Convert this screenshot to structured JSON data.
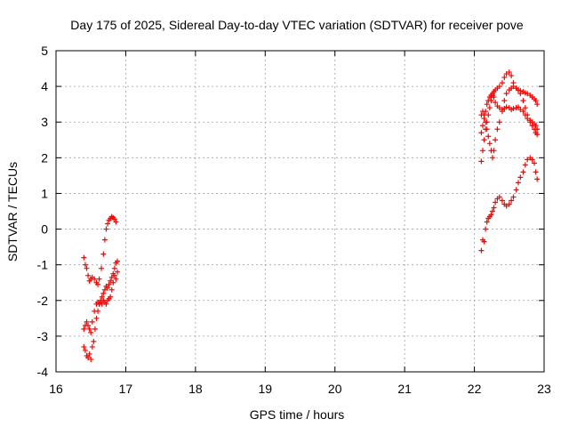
{
  "chart_data": {
    "type": "scatter",
    "title": "Day 175 of 2025, Sidereal Day-to-day VTEC variation (SDTVAR) for receiver pove",
    "xlabel": "GPS time / hours",
    "ylabel": "SDTVAR / TECUs",
    "xlim": [
      16,
      23
    ],
    "ylim": [
      -4,
      5
    ],
    "xticks": [
      16,
      17,
      18,
      19,
      20,
      21,
      22,
      23
    ],
    "yticks": [
      -4,
      -3,
      -2,
      -1,
      0,
      1,
      2,
      3,
      4,
      5
    ],
    "grid": true,
    "legend": "none",
    "marker": "+",
    "color": "#ff0000",
    "series": [
      {
        "x": [
          16.4,
          16.42,
          16.44,
          16.46,
          16.48,
          16.5,
          16.52,
          16.55,
          16.58,
          16.6,
          16.62,
          16.65,
          16.68,
          16.7,
          16.72,
          16.74,
          16.76,
          16.78,
          16.8,
          16.82,
          16.84,
          16.86
        ],
        "y": [
          -0.8,
          -1.0,
          -1.1,
          -1.3,
          -1.45,
          -1.4,
          -1.35,
          -1.4,
          -1.5,
          -1.55,
          -1.4,
          -1.1,
          -0.7,
          -0.3,
          0.0,
          0.15,
          0.25,
          0.3,
          0.35,
          0.32,
          0.28,
          0.2
        ]
      },
      {
        "x": [
          16.4,
          16.42,
          16.44,
          16.46,
          16.48,
          16.5,
          16.52,
          16.55,
          16.58,
          16.6,
          16.62,
          16.64,
          16.66,
          16.68,
          16.7,
          16.72,
          16.74,
          16.76,
          16.78,
          16.8,
          16.82,
          16.84,
          16.86,
          16.88
        ],
        "y": [
          -2.8,
          -2.7,
          -2.6,
          -2.7,
          -2.8,
          -2.9,
          -2.6,
          -2.3,
          -2.1,
          -2.05,
          -2.1,
          -2.0,
          -1.9,
          -1.8,
          -1.7,
          -1.6,
          -1.65,
          -1.55,
          -1.45,
          -1.35,
          -1.25,
          -1.1,
          -0.95,
          -0.9
        ]
      },
      {
        "x": [
          16.4,
          16.42,
          16.44,
          16.46,
          16.48,
          16.5,
          16.52,
          16.54,
          16.56,
          16.58,
          16.6,
          16.62,
          16.64,
          16.66,
          16.68,
          16.7,
          16.72,
          16.74,
          16.76,
          16.78,
          16.8,
          16.82,
          16.84,
          16.86,
          16.88
        ],
        "y": [
          -3.3,
          -3.4,
          -3.55,
          -3.6,
          -3.5,
          -3.65,
          -3.3,
          -3.15,
          -2.8,
          -2.5,
          -2.3,
          -2.1,
          -2.05,
          -2.1,
          -2.0,
          -2.05,
          -2.1,
          -2.0,
          -1.95,
          -1.9,
          -1.7,
          -1.5,
          -1.3,
          -1.4,
          -1.2
        ]
      },
      {
        "x": [
          22.1,
          22.12,
          22.14,
          22.16,
          22.18,
          22.2,
          22.22,
          22.24,
          22.26,
          22.28,
          22.3,
          22.33,
          22.36,
          22.4,
          22.43,
          22.46,
          22.5,
          22.53,
          22.56,
          22.6,
          22.63,
          22.66,
          22.7,
          22.73,
          22.76,
          22.8,
          22.83,
          22.86,
          22.88,
          22.9
        ],
        "y": [
          1.9,
          2.2,
          2.5,
          2.8,
          3.0,
          3.2,
          3.4,
          3.6,
          3.75,
          3.85,
          3.9,
          3.95,
          4.0,
          4.1,
          4.25,
          4.35,
          4.4,
          4.3,
          4.1,
          3.95,
          3.9,
          3.88,
          3.85,
          3.82,
          3.8,
          3.75,
          3.7,
          3.65,
          3.6,
          3.5
        ]
      },
      {
        "x": [
          22.1,
          22.12,
          22.14,
          22.16,
          22.18,
          22.2,
          22.22,
          22.24,
          22.26,
          22.28,
          22.3,
          22.33,
          22.36,
          22.4,
          22.43,
          22.46,
          22.5,
          22.53,
          22.56,
          22.6,
          22.63,
          22.66,
          22.7,
          22.73,
          22.76,
          22.8,
          22.83,
          22.86,
          22.88,
          22.9
        ],
        "y": [
          2.7,
          2.9,
          3.1,
          3.3,
          3.5,
          3.6,
          3.7,
          3.75,
          3.8,
          3.7,
          3.55,
          3.45,
          3.4,
          3.35,
          3.38,
          3.42,
          3.4,
          3.35,
          3.38,
          3.4,
          3.42,
          3.35,
          3.3,
          3.2,
          3.1,
          3.05,
          3.0,
          2.95,
          2.9,
          2.8
        ]
      },
      {
        "x": [
          22.1,
          22.12,
          22.14,
          22.16,
          22.18,
          22.2,
          22.22,
          22.24,
          22.26,
          22.28,
          22.3,
          22.33,
          22.36,
          22.4,
          22.43,
          22.46,
          22.5,
          22.53,
          22.56,
          22.6,
          22.63,
          22.66,
          22.7,
          22.73,
          22.76,
          22.8,
          22.83,
          22.86,
          22.88,
          22.9
        ],
        "y": [
          3.2,
          3.3,
          3.2,
          3.0,
          2.8,
          2.6,
          2.4,
          2.2,
          2.0,
          2.2,
          2.5,
          2.8,
          3.0,
          3.3,
          3.6,
          3.8,
          3.9,
          3.95,
          4.0,
          3.95,
          3.9,
          3.8,
          3.6,
          3.4,
          3.2,
          3.0,
          2.9,
          2.8,
          2.7,
          2.65
        ]
      },
      {
        "x": [
          22.1,
          22.12,
          22.14,
          22.16,
          22.18,
          22.2,
          22.22,
          22.24,
          22.26,
          22.28,
          22.3,
          22.33,
          22.36,
          22.4,
          22.43,
          22.46,
          22.5,
          22.53,
          22.56,
          22.6,
          22.63,
          22.66,
          22.7,
          22.73,
          22.76,
          22.8,
          22.83,
          22.86,
          22.88,
          22.9
        ],
        "y": [
          -0.6,
          -0.3,
          -0.35,
          0.0,
          0.2,
          0.3,
          0.35,
          0.4,
          0.5,
          0.6,
          0.75,
          0.85,
          0.9,
          0.8,
          0.7,
          0.65,
          0.7,
          0.8,
          0.9,
          1.1,
          1.3,
          1.45,
          1.6,
          1.8,
          1.95,
          2.0,
          1.95,
          1.85,
          1.6,
          1.4
        ]
      }
    ]
  }
}
